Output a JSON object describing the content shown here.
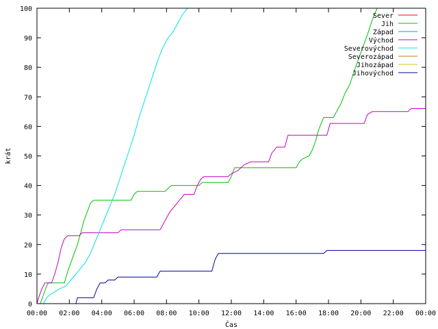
{
  "chart_data": {
    "type": "line",
    "title": "",
    "xlabel": "Čas",
    "ylabel": "krát",
    "xlim": [
      0,
      24
    ],
    "ylim": [
      0,
      100
    ],
    "x_ticks": [
      0,
      2,
      4,
      6,
      8,
      10,
      12,
      14,
      16,
      18,
      20,
      22,
      24
    ],
    "x_tick_labels": [
      "00:00",
      "02:00",
      "04:00",
      "06:00",
      "08:00",
      "10:00",
      "12:00",
      "14:00",
      "16:00",
      "18:00",
      "20:00",
      "22:00",
      "00:00"
    ],
    "y_ticks": [
      0,
      10,
      20,
      30,
      40,
      50,
      60,
      70,
      80,
      90,
      100
    ],
    "y_tick_labels": [
      "0",
      "10",
      "20",
      "30",
      "40",
      "50",
      "60",
      "70",
      "80",
      "90",
      "100"
    ],
    "grid": false,
    "legend_position": "top-right",
    "series": [
      {
        "name": "Sever",
        "color": "#ff0000",
        "points": []
      },
      {
        "name": "Jih",
        "color": "#00c000",
        "points": [
          [
            0.0,
            0
          ],
          [
            0.2,
            0
          ],
          [
            0.4,
            3
          ],
          [
            0.6,
            6
          ],
          [
            0.7,
            7
          ],
          [
            1.7,
            7
          ],
          [
            1.9,
            11
          ],
          [
            2.1,
            14
          ],
          [
            2.3,
            17
          ],
          [
            2.5,
            20
          ],
          [
            2.7,
            24
          ],
          [
            2.9,
            28
          ],
          [
            3.1,
            31
          ],
          [
            3.3,
            34
          ],
          [
            3.5,
            35
          ],
          [
            5.8,
            35
          ],
          [
            6.0,
            37
          ],
          [
            6.2,
            38
          ],
          [
            7.9,
            38
          ],
          [
            8.1,
            39
          ],
          [
            8.3,
            40
          ],
          [
            10.0,
            40
          ],
          [
            10.2,
            41
          ],
          [
            11.8,
            41
          ],
          [
            12.0,
            43
          ],
          [
            12.2,
            46
          ],
          [
            16.0,
            46
          ],
          [
            16.2,
            48
          ],
          [
            16.4,
            49
          ],
          [
            16.8,
            50
          ],
          [
            17.0,
            52
          ],
          [
            17.2,
            55
          ],
          [
            17.4,
            59
          ],
          [
            17.7,
            63
          ],
          [
            18.3,
            63
          ],
          [
            18.5,
            65
          ],
          [
            18.8,
            68
          ],
          [
            19.0,
            71
          ],
          [
            19.3,
            74
          ],
          [
            19.6,
            79
          ],
          [
            20.0,
            85
          ],
          [
            20.4,
            91
          ],
          [
            20.7,
            96
          ],
          [
            21.0,
            100
          ]
        ]
      },
      {
        "name": "Západ",
        "color": "#00a0c0",
        "points": []
      },
      {
        "name": "Východ",
        "color": "#c000c0",
        "points": [
          [
            0.0,
            0
          ],
          [
            0.1,
            2
          ],
          [
            0.3,
            5
          ],
          [
            0.5,
            7
          ],
          [
            0.9,
            7
          ],
          [
            1.1,
            10
          ],
          [
            1.3,
            14
          ],
          [
            1.5,
            19
          ],
          [
            1.7,
            22
          ],
          [
            1.9,
            23
          ],
          [
            2.6,
            23
          ],
          [
            2.8,
            24
          ],
          [
            5.0,
            24
          ],
          [
            5.2,
            25
          ],
          [
            7.6,
            25
          ],
          [
            7.8,
            27
          ],
          [
            8.0,
            29
          ],
          [
            8.2,
            31
          ],
          [
            8.5,
            33
          ],
          [
            8.8,
            35
          ],
          [
            9.1,
            37
          ],
          [
            9.7,
            37
          ],
          [
            9.9,
            40
          ],
          [
            10.1,
            42
          ],
          [
            10.3,
            43
          ],
          [
            11.8,
            43
          ],
          [
            12.0,
            44
          ],
          [
            12.4,
            45
          ],
          [
            12.8,
            47
          ],
          [
            13.2,
            48
          ],
          [
            14.3,
            48
          ],
          [
            14.5,
            51
          ],
          [
            14.8,
            53
          ],
          [
            15.3,
            53
          ],
          [
            15.5,
            57
          ],
          [
            17.9,
            57
          ],
          [
            18.1,
            61
          ],
          [
            20.2,
            61
          ],
          [
            20.4,
            64
          ],
          [
            20.7,
            65
          ],
          [
            22.9,
            65
          ],
          [
            23.1,
            66
          ],
          [
            24.0,
            66
          ]
        ]
      },
      {
        "name": "Severovýchod",
        "color": "#00e0e0",
        "points": [
          [
            0.0,
            0
          ],
          [
            0.4,
            0
          ],
          [
            0.6,
            2
          ],
          [
            0.8,
            3
          ],
          [
            1.1,
            4
          ],
          [
            1.4,
            5
          ],
          [
            1.8,
            6
          ],
          [
            2.1,
            8
          ],
          [
            2.4,
            10
          ],
          [
            2.7,
            12
          ],
          [
            3.0,
            14
          ],
          [
            3.3,
            17
          ],
          [
            3.6,
            21
          ],
          [
            3.9,
            25
          ],
          [
            4.2,
            29
          ],
          [
            4.5,
            33
          ],
          [
            4.8,
            37
          ],
          [
            5.1,
            42
          ],
          [
            5.4,
            47
          ],
          [
            5.7,
            52
          ],
          [
            6.0,
            57
          ],
          [
            6.3,
            63
          ],
          [
            6.6,
            68
          ],
          [
            6.9,
            73
          ],
          [
            7.2,
            78
          ],
          [
            7.5,
            83
          ],
          [
            7.8,
            87
          ],
          [
            8.1,
            90
          ],
          [
            8.4,
            92
          ],
          [
            8.7,
            95
          ],
          [
            9.0,
            98
          ],
          [
            9.3,
            100
          ]
        ]
      },
      {
        "name": "Severozápad",
        "color": "#c08000",
        "points": []
      },
      {
        "name": "Jihozápad",
        "color": "#e0c000",
        "points": []
      },
      {
        "name": "Jihovýchod",
        "color": "#0000a0",
        "points": [
          [
            2.4,
            0
          ],
          [
            2.5,
            2
          ],
          [
            3.5,
            2
          ],
          [
            3.7,
            5
          ],
          [
            3.9,
            7
          ],
          [
            4.2,
            7
          ],
          [
            4.4,
            8
          ],
          [
            4.8,
            8
          ],
          [
            5.0,
            9
          ],
          [
            7.4,
            9
          ],
          [
            7.6,
            11
          ],
          [
            10.8,
            11
          ],
          [
            11.0,
            15
          ],
          [
            11.2,
            17
          ],
          [
            17.7,
            17
          ],
          [
            17.9,
            18
          ],
          [
            24.0,
            18
          ]
        ]
      }
    ]
  }
}
